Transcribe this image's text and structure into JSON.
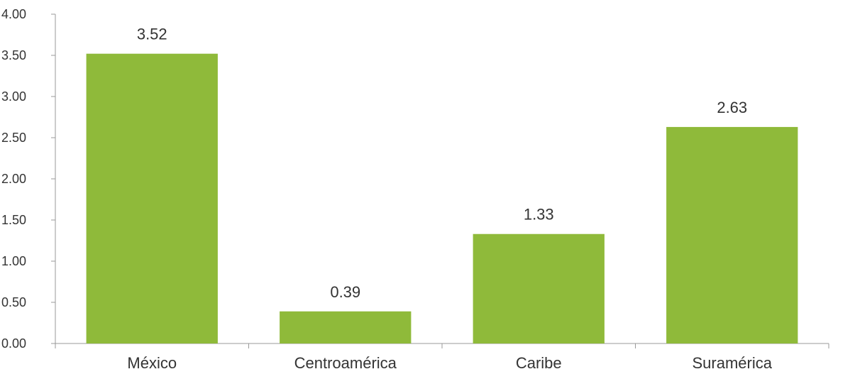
{
  "chart_data": {
    "type": "bar",
    "title": "",
    "xlabel": "",
    "ylabel": "",
    "categories": [
      "México",
      "Centroamérica",
      "Caribe",
      "Suramérica"
    ],
    "values": [
      3.52,
      0.39,
      1.33,
      2.63
    ],
    "data_labels": [
      "3.52",
      "0.39",
      "1.33",
      "2.63"
    ],
    "ylim": [
      0,
      4
    ],
    "yticks": [
      0,
      0.5,
      1,
      1.5,
      2,
      2.5,
      3,
      3.5,
      4
    ],
    "ytick_labels": [
      "0.00",
      "0.50",
      "1.00",
      "1.50",
      "2.00",
      "2.50",
      "3.00",
      "3.50",
      "4.00"
    ],
    "grid": false,
    "legend": "none",
    "bar_color": "#8fba3a",
    "axis_color": "#999999",
    "text_color": "#333333"
  }
}
